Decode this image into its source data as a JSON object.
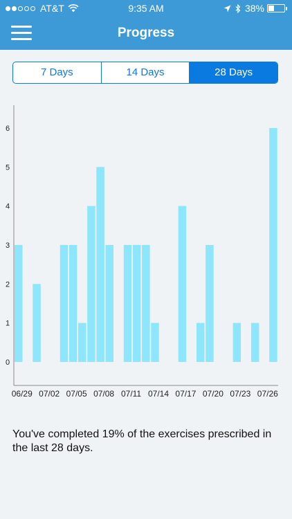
{
  "status_bar": {
    "carrier": "AT&T",
    "time": "9:35 AM",
    "battery": "38%",
    "battery_level": 0.38,
    "signal_bars_filled": 2,
    "signal_bars_total": 5
  },
  "nav": {
    "title": "Progress",
    "menu_icon": "hamburger-menu-icon"
  },
  "tabs": [
    {
      "label": "7 Days",
      "active": false
    },
    {
      "label": "14 Days",
      "active": false
    },
    {
      "label": "28 Days",
      "active": true
    }
  ],
  "chart_data": {
    "type": "bar",
    "categories": [
      "06/29",
      "06/30",
      "07/01",
      "07/02",
      "07/03",
      "07/04",
      "07/05",
      "07/06",
      "07/07",
      "07/08",
      "07/09",
      "07/10",
      "07/11",
      "07/12",
      "07/13",
      "07/14",
      "07/15",
      "07/16",
      "07/17",
      "07/18",
      "07/19",
      "07/20",
      "07/21",
      "07/22",
      "07/23",
      "07/24",
      "07/25",
      "07/26",
      "07/27",
      "07/28"
    ],
    "values": [
      3,
      0,
      2,
      0,
      0,
      3,
      3,
      1,
      4,
      5,
      3,
      0,
      3,
      3,
      3,
      1,
      0,
      0,
      4,
      0,
      1,
      3,
      0,
      0,
      1,
      0,
      1,
      0,
      6,
      0
    ],
    "x_tick_labels": [
      "06/29",
      "07/02",
      "07/05",
      "07/08",
      "07/11",
      "07/14",
      "07/17",
      "07/20",
      "07/23",
      "07/26"
    ],
    "y_tick_labels": [
      "0",
      "1",
      "2",
      "3",
      "4",
      "5",
      "6"
    ],
    "ylim": [
      0,
      6
    ],
    "bar_color": "#8ee6fc",
    "grid": false
  },
  "summary": {
    "text": "You've completed 19% of the exercises prescribed in the last 28 days."
  },
  "colors": {
    "header": "#3d9ad6",
    "accent": "#0a7ae0",
    "background": "#f0f3f6"
  }
}
